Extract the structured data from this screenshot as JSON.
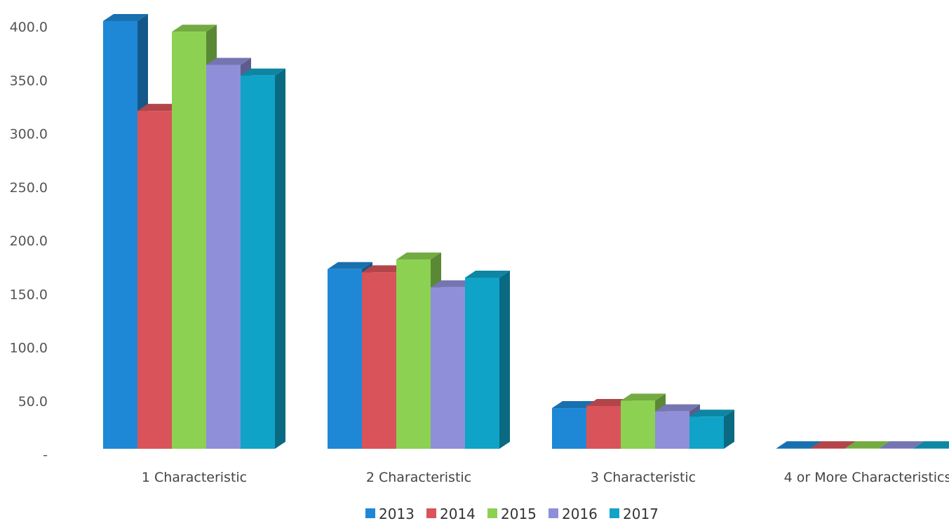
{
  "chart_data": {
    "type": "bar",
    "title": "",
    "xlabel": "",
    "ylabel": "",
    "ylim": [
      0,
      400
    ],
    "y_ticks": [
      "-",
      "50.0",
      "100.0",
      "150.0",
      "200.0",
      "250.0",
      "300.0",
      "350.0",
      "400.0"
    ],
    "y_tick_values": [
      0,
      50,
      100,
      150,
      200,
      250,
      300,
      350,
      400
    ],
    "categories": [
      "1 Characteristic",
      "2 Characteristic",
      "3 Characteristic",
      "4 or More  Characteristics"
    ],
    "series": [
      {
        "name": "2013",
        "color": "#1e88d6",
        "values": [
          400,
          168,
          38,
          0.5
        ]
      },
      {
        "name": "2014",
        "color": "#d9545a",
        "values": [
          316,
          165,
          40,
          0.5
        ]
      },
      {
        "name": "2015",
        "color": "#8cd151",
        "values": [
          390,
          177,
          45,
          0.5
        ]
      },
      {
        "name": "2016",
        "color": "#8f8fd9",
        "values": [
          359,
          151,
          35,
          0.5
        ]
      },
      {
        "name": "2017",
        "color": "#10a3c8",
        "values": [
          349,
          160,
          30,
          0.5
        ]
      }
    ],
    "legend_position": "bottom",
    "grid": false,
    "style": "3d"
  }
}
